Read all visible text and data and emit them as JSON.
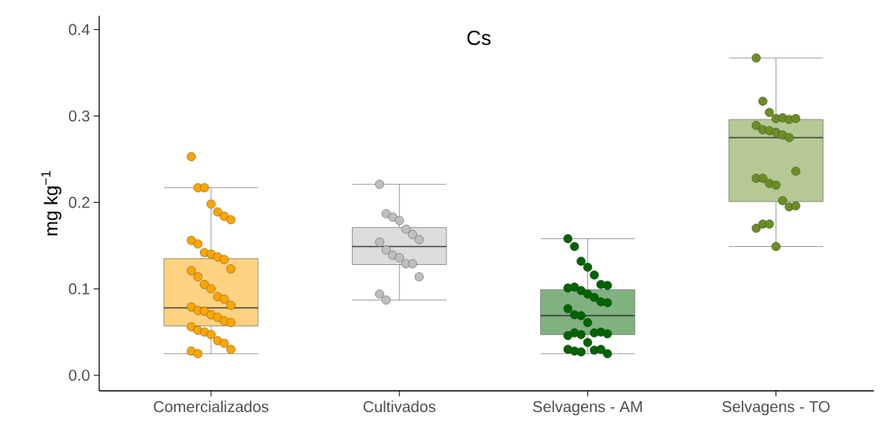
{
  "chart_data": {
    "type": "box",
    "title": "Cs",
    "ylabel": "mg kg$^{−1}$",
    "categories": [
      "Comercializados",
      "Cultivados",
      "Selvagens - AM",
      "Selvagens - TO"
    ],
    "colors": [
      "#fdd281",
      "#dcdcdc",
      "#7fb27f",
      "#b5c994"
    ],
    "boxes": [
      {
        "low": 0.025,
        "q1": 0.057,
        "median": 0.078,
        "q3": 0.135,
        "high": 0.217
      },
      {
        "low": 0.087,
        "q1": 0.128,
        "median": 0.149,
        "q3": 0.171,
        "high": 0.221
      },
      {
        "low": 0.025,
        "q1": 0.047,
        "median": 0.069,
        "q3": 0.099,
        "high": 0.158
      },
      {
        "low": 0.149,
        "q1": 0.201,
        "median": 0.275,
        "q3": 0.296,
        "high": 0.367
      }
    ],
    "series": [
      {
        "type": "scatter",
        "color": "#ffa500",
        "x": [
          "Comercializados",
          "Comercializados",
          "Comercializados",
          "Comercializados",
          "Comercializados",
          "Comercializados",
          "Comercializados",
          "Comercializados",
          "Comercializados",
          "Comercializados",
          "Comercializados",
          "Comercializados",
          "Comercializados",
          "Comercializados",
          "Comercializados",
          "Comercializados",
          "Comercializados",
          "Comercializados",
          "Comercializados",
          "Comercializados",
          "Comercializados",
          "Comercializados",
          "Comercializados",
          "Comercializados",
          "Comercializados",
          "Comercializados",
          "Comercializados",
          "Comercializados",
          "Comercializados",
          "Comercializados",
          "Comercializados",
          "Comercializados",
          "Comercializados",
          "Comercializados",
          "Comercializados",
          "Comercializados",
          "Comercializados"
        ],
        "values": [
          0.253,
          0.217,
          0.217,
          0.198,
          0.189,
          0.184,
          0.18,
          0.156,
          0.152,
          0.142,
          0.14,
          0.137,
          0.134,
          0.123,
          0.121,
          0.114,
          0.105,
          0.1,
          0.091,
          0.088,
          0.081,
          0.079,
          0.075,
          0.074,
          0.07,
          0.067,
          0.063,
          0.061,
          0.056,
          0.052,
          0.05,
          0.047,
          0.04,
          0.037,
          0.03,
          0.028,
          0.025
        ]
      },
      {
        "type": "scatter",
        "color": "#bebebe",
        "x": [
          "Cultivados",
          "Cultivados",
          "Cultivados",
          "Cultivados",
          "Cultivados",
          "Cultivados",
          "Cultivados",
          "Cultivados",
          "Cultivados",
          "Cultivados",
          "Cultivados",
          "Cultivados",
          "Cultivados",
          "Cultivados",
          "Cultivados",
          "Cultivados"
        ],
        "values": [
          0.221,
          0.187,
          0.183,
          0.179,
          0.169,
          0.163,
          0.157,
          0.154,
          0.145,
          0.139,
          0.136,
          0.129,
          0.129,
          0.114,
          0.094,
          0.087
        ]
      },
      {
        "type": "scatter",
        "color": "#006400",
        "x": [
          "Selvagens - AM",
          "Selvagens - AM",
          "Selvagens - AM",
          "Selvagens - AM",
          "Selvagens - AM",
          "Selvagens - AM",
          "Selvagens - AM",
          "Selvagens - AM",
          "Selvagens - AM",
          "Selvagens - AM",
          "Selvagens - AM",
          "Selvagens - AM",
          "Selvagens - AM",
          "Selvagens - AM",
          "Selvagens - AM",
          "Selvagens - AM",
          "Selvagens - AM",
          "Selvagens - AM",
          "Selvagens - AM",
          "Selvagens - AM",
          "Selvagens - AM",
          "Selvagens - AM",
          "Selvagens - AM",
          "Selvagens - AM",
          "Selvagens - AM",
          "Selvagens - AM",
          "Selvagens - AM",
          "Selvagens - AM",
          "Selvagens - AM",
          "Selvagens - AM",
          "Selvagens - AM"
        ],
        "values": [
          0.158,
          0.149,
          0.132,
          0.125,
          0.116,
          0.105,
          0.104,
          0.101,
          0.102,
          0.098,
          0.094,
          0.09,
          0.085,
          0.084,
          0.077,
          0.07,
          0.069,
          0.061,
          0.049,
          0.05,
          0.048,
          0.046,
          0.049,
          0.047,
          0.038,
          0.029,
          0.03,
          0.025,
          0.03,
          0.028,
          0.027
        ]
      },
      {
        "type": "scatter",
        "color": "#6b8e23",
        "x": [
          "Selvagens - TO",
          "Selvagens - TO",
          "Selvagens - TO",
          "Selvagens - TO",
          "Selvagens - TO",
          "Selvagens - TO",
          "Selvagens - TO",
          "Selvagens - TO",
          "Selvagens - TO",
          "Selvagens - TO",
          "Selvagens - TO",
          "Selvagens - TO",
          "Selvagens - TO",
          "Selvagens - TO",
          "Selvagens - TO",
          "Selvagens - TO",
          "Selvagens - TO",
          "Selvagens - TO",
          "Selvagens - TO",
          "Selvagens - TO",
          "Selvagens - TO",
          "Selvagens - TO",
          "Selvagens - TO",
          "Selvagens - TO",
          "Selvagens - TO"
        ],
        "values": [
          0.367,
          0.317,
          0.304,
          0.297,
          0.298,
          0.296,
          0.297,
          0.289,
          0.284,
          0.283,
          0.281,
          0.278,
          0.275,
          0.236,
          0.228,
          0.228,
          0.222,
          0.22,
          0.202,
          0.195,
          0.196,
          0.17,
          0.175,
          0.175,
          0.149
        ]
      }
    ],
    "ylim": [
      -0.018,
      0.416
    ],
    "yticks": [
      {
        "value": 0,
        "label": "0.0"
      },
      {
        "value": 0.1,
        "label": "0.1"
      },
      {
        "value": 0.2,
        "label": "0.2"
      },
      {
        "value": 0.3,
        "label": "0.3"
      },
      {
        "value": 0.4,
        "label": "0.4"
      }
    ],
    "marker": "circle"
  }
}
